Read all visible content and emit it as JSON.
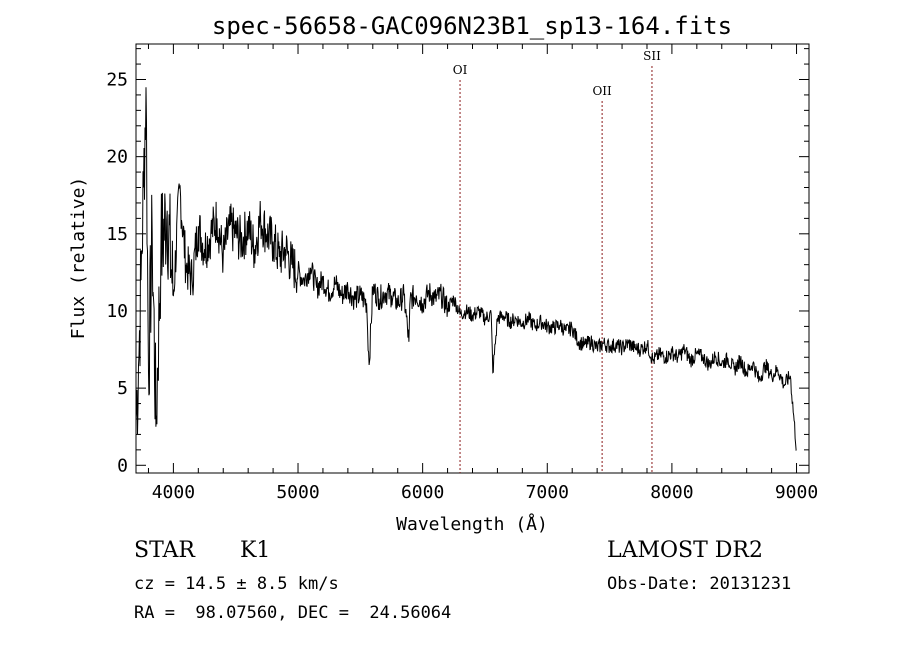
{
  "chart_data": {
    "type": "line",
    "title": "spec-56658-GAC096N23B1_sp13-164.fits",
    "xlabel": "Wavelength (Å)",
    "ylabel": "Flux (relative)",
    "xlim": [
      3700,
      9100
    ],
    "ylim": [
      -0.5,
      27.3
    ],
    "xticks": [
      4000,
      5000,
      6000,
      7000,
      8000,
      9000
    ],
    "yticks": [
      0,
      5,
      10,
      15,
      20,
      25
    ],
    "grid": false,
    "line_color": "#000000",
    "marker_color": "#8b1a1a",
    "lines": [
      {
        "label": "OI",
        "x": 6300
      },
      {
        "label": "OII",
        "x": 7440
      },
      {
        "label": "SII",
        "x": 7840
      }
    ],
    "series": [
      {
        "x": [
          3700,
          3720,
          3740,
          3760,
          3780,
          3800,
          3830,
          3860,
          3900,
          3950,
          4000,
          4050,
          4100,
          4150,
          4200,
          4250,
          4300,
          4350,
          4400,
          4450,
          4500,
          4550,
          4600,
          4650,
          4700,
          4750,
          4800,
          4850,
          4900,
          4950,
          5000,
          5050,
          5100,
          5150,
          5200,
          5250,
          5300,
          5350,
          5400,
          5450,
          5500,
          5550,
          5570,
          5600,
          5650,
          5700,
          5750,
          5800,
          5850,
          5890,
          5900,
          5950,
          6000,
          6050,
          6100,
          6150,
          6200,
          6250,
          6300,
          6350,
          6400,
          6450,
          6500,
          6550,
          6563,
          6600,
          6650,
          6700,
          6750,
          6800,
          6850,
          6900,
          6950,
          7000,
          7050,
          7100,
          7150,
          7200,
          7250,
          7300,
          7350,
          7400,
          7450,
          7500,
          7550,
          7600,
          7650,
          7700,
          7750,
          7800,
          7850,
          7900,
          7950,
          8000,
          8050,
          8100,
          8150,
          8200,
          8250,
          8300,
          8350,
          8400,
          8450,
          8500,
          8550,
          8600,
          8650,
          8700,
          8750,
          8800,
          8850,
          8900,
          8950,
          9000
        ],
        "y": [
          3.0,
          6.5,
          12.0,
          18.0,
          24.5,
          6.0,
          15.0,
          2.5,
          14.0,
          16.5,
          11.0,
          18.0,
          13.0,
          12.0,
          15.5,
          14.0,
          15.0,
          16.0,
          13.5,
          15.5,
          15.0,
          14.5,
          15.5,
          14.0,
          16.0,
          15.0,
          14.5,
          13.5,
          14.0,
          13.0,
          12.5,
          12.0,
          12.8,
          11.5,
          12.0,
          11.2,
          11.8,
          11.0,
          11.5,
          10.8,
          11.0,
          10.5,
          6.5,
          11.5,
          10.8,
          11.2,
          11.0,
          10.5,
          11.0,
          8.0,
          10.8,
          11.0,
          10.5,
          11.2,
          10.8,
          11.0,
          10.2,
          10.8,
          9.8,
          10.0,
          9.7,
          10.0,
          9.5,
          9.8,
          6.0,
          9.5,
          9.7,
          9.3,
          9.5,
          9.2,
          9.5,
          9.0,
          9.3,
          9.0,
          8.9,
          9.1,
          8.7,
          8.9,
          8.0,
          7.8,
          8.0,
          7.6,
          7.9,
          7.7,
          7.8,
          7.6,
          7.9,
          7.6,
          7.5,
          7.8,
          6.8,
          7.2,
          7.0,
          7.3,
          7.0,
          7.5,
          6.8,
          7.2,
          7.0,
          6.5,
          7.1,
          6.6,
          6.9,
          6.2,
          6.8,
          6.0,
          6.6,
          5.5,
          6.5,
          5.8,
          6.2,
          5.2,
          5.8,
          1.0
        ]
      }
    ]
  },
  "info": {
    "class_label": "STAR",
    "subclass": "K1",
    "survey": "LAMOST DR2",
    "redshift_line": "cz = 14.5 ± 8.5 km/s",
    "obs_date_line": "Obs-Date: 20131231",
    "coords_line": "RA =  98.07560, DEC =  24.56064"
  }
}
